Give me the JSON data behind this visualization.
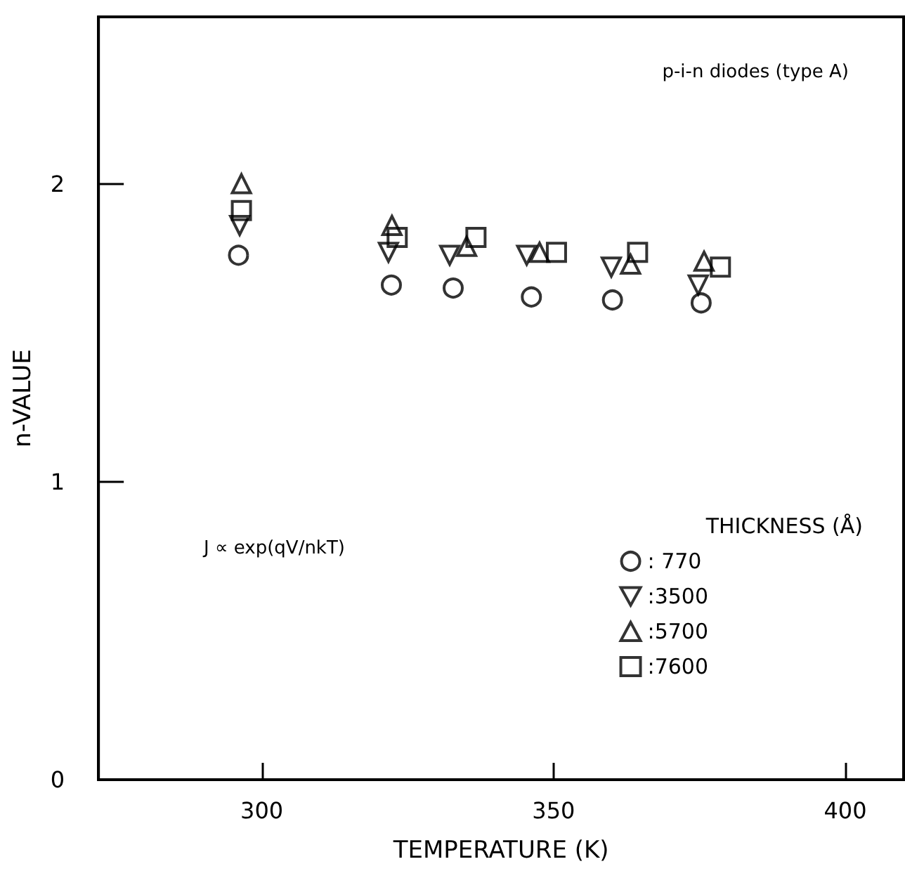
{
  "chart_data": {
    "type": "scatter",
    "xlabel": "TEMPERATURE (K)",
    "ylabel": "n-VALUE",
    "legend_title": "THICKNESS (Å)",
    "annotations": [
      "p-i-n diodes (type A)",
      "J ∝ exp(qV/nkT)"
    ],
    "xlim": [
      272,
      410
    ],
    "xticks": [
      300,
      350,
      400
    ],
    "ylim": [
      0,
      2.56
    ],
    "yticks": [
      0,
      1,
      2
    ],
    "grid": false,
    "legend": "bottom right",
    "series": [
      {
        "name": ": 770",
        "color": "#000000",
        "marker": "circle",
        "x": [
          296.0,
          322.2,
          332.8,
          346.2,
          360.1,
          375.3
        ],
        "values": [
          1.76,
          1.66,
          1.65,
          1.62,
          1.61,
          1.6
        ]
      },
      {
        "name": ":3500",
        "color": "#000000",
        "marker": "triangle-down",
        "x": [
          296.2,
          321.7,
          332.2,
          345.4,
          359.9,
          374.8
        ],
        "values": [
          1.86,
          1.77,
          1.76,
          1.76,
          1.72,
          1.66
        ]
      },
      {
        "name": ":5700",
        "color": "#000000",
        "marker": "triangle",
        "x": [
          296.5,
          322.3,
          335.1,
          347.6,
          363.2,
          375.8
        ],
        "values": [
          2.0,
          1.86,
          1.79,
          1.77,
          1.73,
          1.74
        ]
      },
      {
        "name": ":7600",
        "color": "#000000",
        "marker": "square",
        "x": [
          296.5,
          323.2,
          336.7,
          350.5,
          364.4,
          378.6
        ],
        "values": [
          1.91,
          1.82,
          1.82,
          1.77,
          1.77,
          1.72
        ]
      }
    ]
  }
}
